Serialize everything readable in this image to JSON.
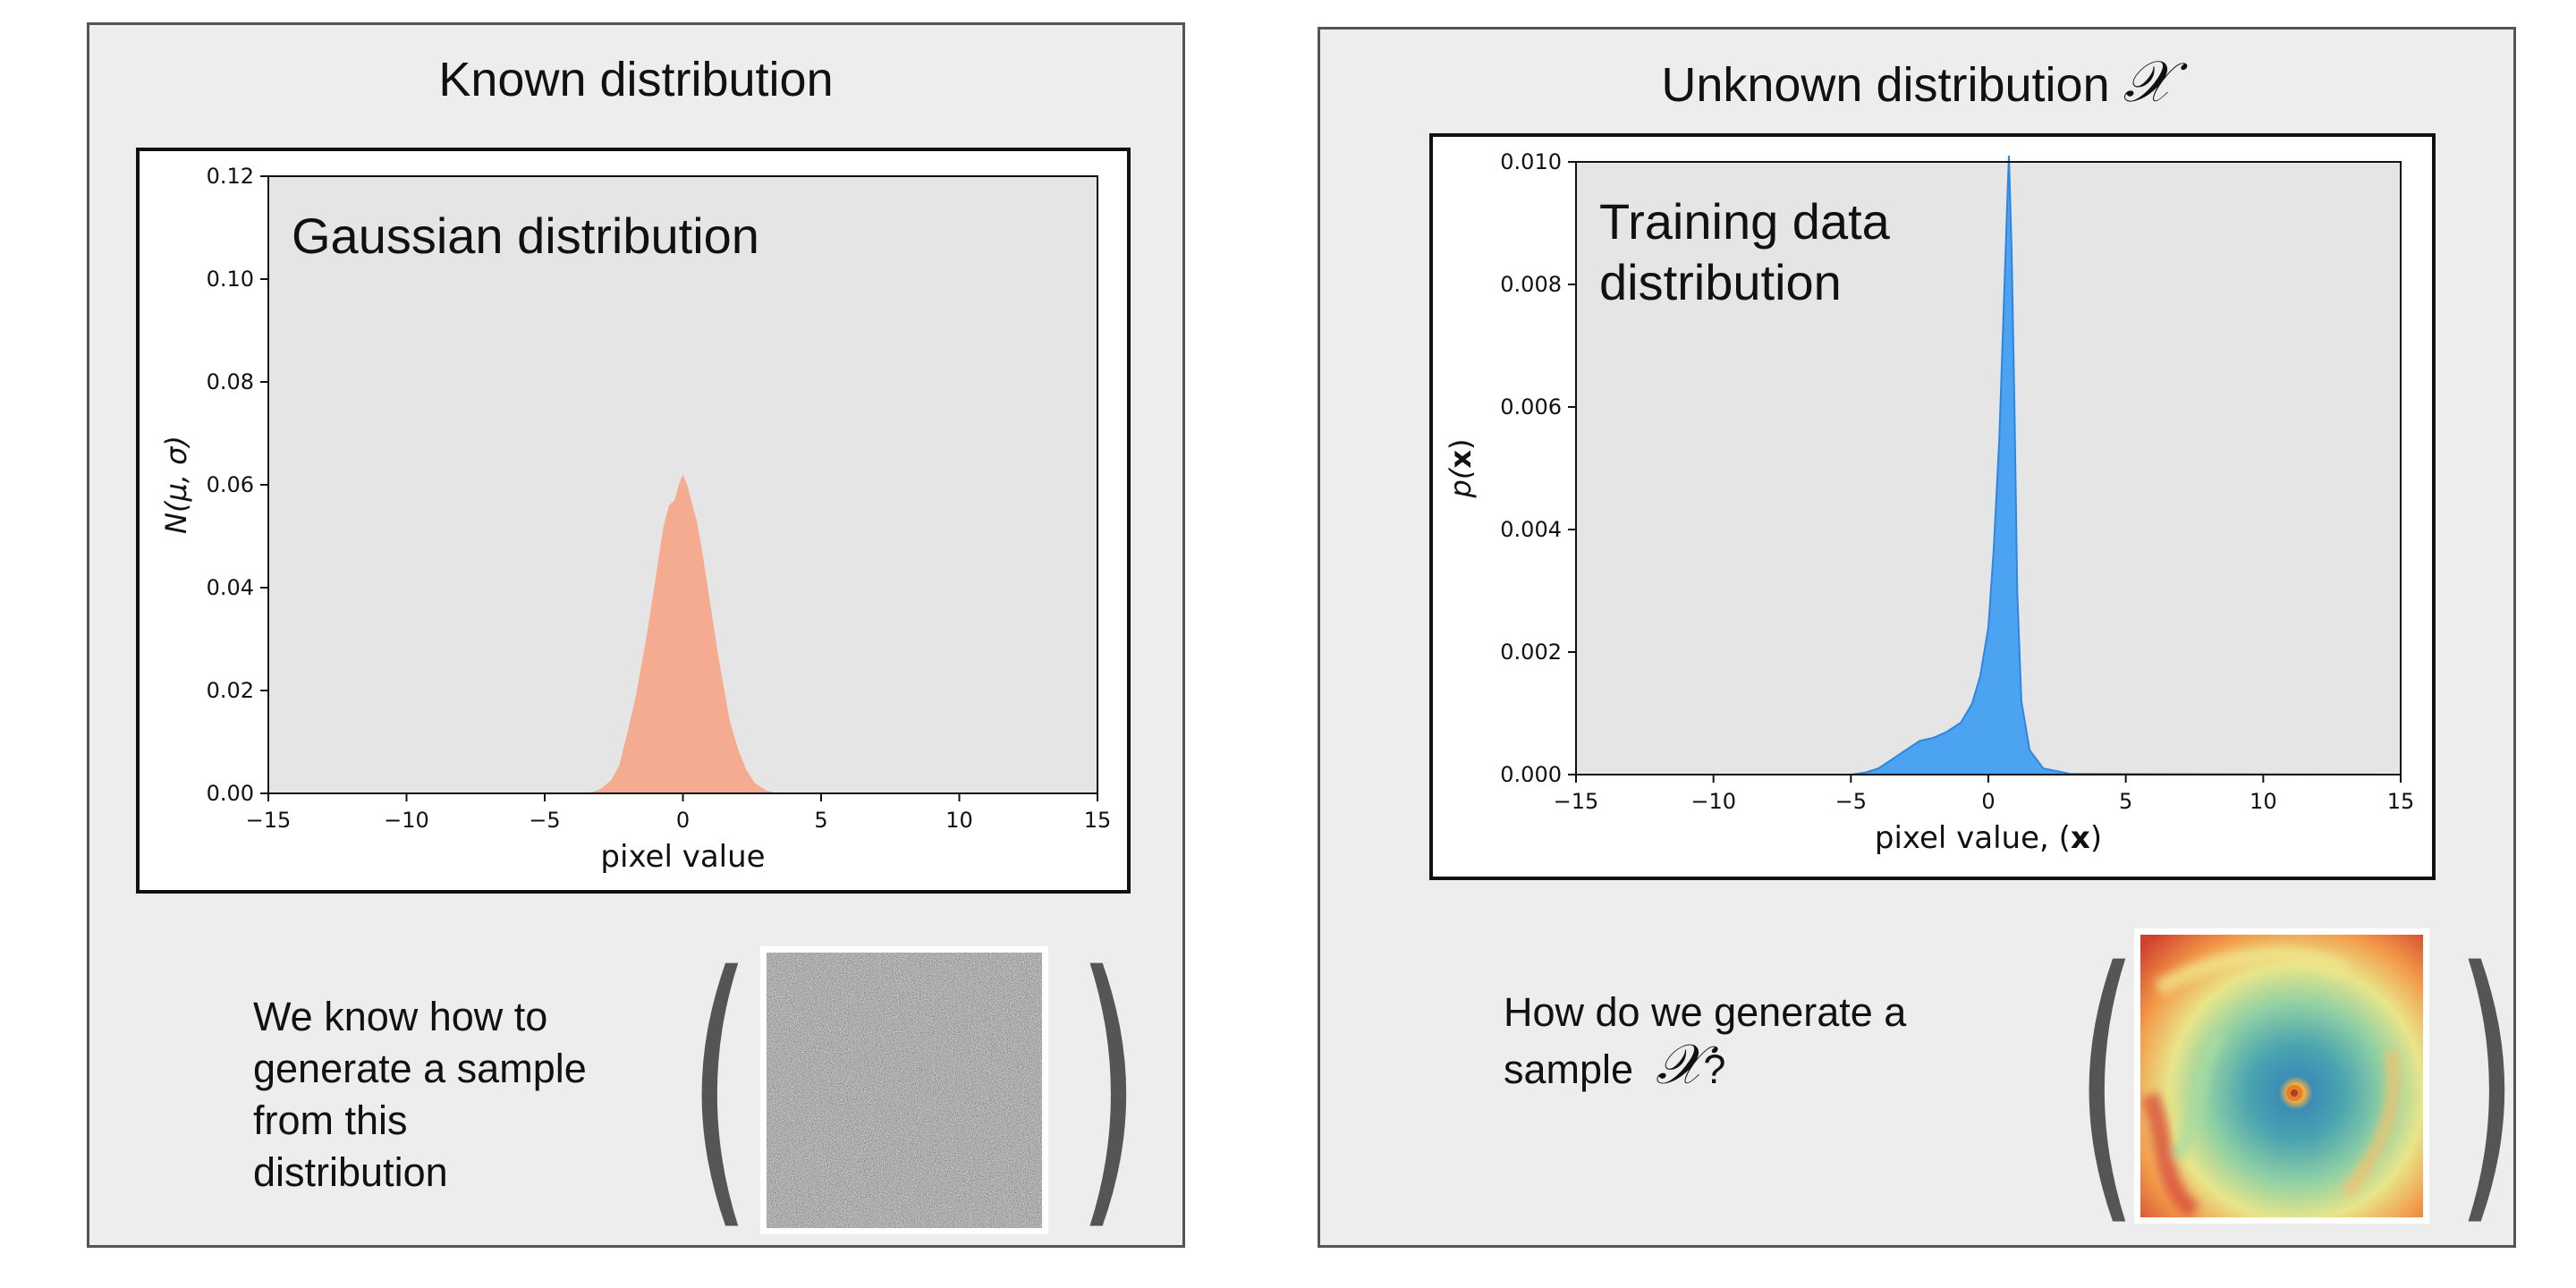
{
  "panels": {
    "left": {
      "title": "Known distribution",
      "caption_lines": [
        "We know how to",
        "generate a sample",
        "from this",
        "distribution"
      ]
    },
    "right": {
      "title": "Unknown distribution",
      "title_symbol": "𝒳",
      "caption_lines": [
        "How do we generate a",
        "sample"
      ],
      "caption_symbol": "𝒳",
      "caption_suffix": "?"
    }
  },
  "colors": {
    "panel_bg": "#ededed",
    "axes_bg": "#e5e5e5",
    "gaussian_fill": "#f4ab90",
    "training_fill": "#4ba3f2",
    "paren": "#555555"
  },
  "chart_data": [
    {
      "type": "area",
      "annotation": "Gaussian distribution",
      "xlabel": "pixel value",
      "ylabel": "N(μ, σ)",
      "xlim": [
        -15,
        15
      ],
      "ylim": [
        0,
        0.12
      ],
      "xticks": [
        -15,
        -10,
        -5,
        0,
        5,
        10,
        15
      ],
      "xtick_labels": [
        "−15",
        "−10",
        "−5",
        "0",
        "5",
        "10",
        "15"
      ],
      "yticks": [
        0.0,
        0.02,
        0.04,
        0.06,
        0.08,
        0.1,
        0.12
      ],
      "ytick_labels": [
        "0.00",
        "0.02",
        "0.04",
        "0.06",
        "0.08",
        "0.10",
        "0.12"
      ],
      "grid": false,
      "series": [
        {
          "x": [
            -3.4,
            -3.0,
            -2.6,
            -2.3,
            -2.0,
            -1.7,
            -1.5,
            -1.3,
            -1.1,
            -0.9,
            -0.7,
            -0.5,
            -0.3,
            -0.15,
            0.0,
            0.15,
            0.3,
            0.5,
            0.7,
            0.9,
            1.1,
            1.3,
            1.5,
            1.7,
            2.0,
            2.3,
            2.6,
            3.0,
            3.4
          ],
          "y": [
            0.0,
            0.0008,
            0.0025,
            0.0055,
            0.012,
            0.019,
            0.025,
            0.031,
            0.038,
            0.045,
            0.052,
            0.056,
            0.057,
            0.06,
            0.062,
            0.06,
            0.057,
            0.053,
            0.047,
            0.04,
            0.033,
            0.026,
            0.02,
            0.014,
            0.0085,
            0.0045,
            0.002,
            0.0006,
            0.0
          ]
        }
      ]
    },
    {
      "type": "area",
      "annotation": "Training data distribution",
      "xlabel": "pixel value, (x)",
      "ylabel": "p(x)",
      "xlim": [
        -15,
        15
      ],
      "ylim": [
        0,
        0.01
      ],
      "xticks": [
        -15,
        -10,
        -5,
        0,
        5,
        10,
        15
      ],
      "xtick_labels": [
        "−15",
        "−10",
        "−5",
        "0",
        "5",
        "10",
        "15"
      ],
      "yticks": [
        0.0,
        0.002,
        0.004,
        0.006,
        0.008,
        0.01
      ],
      "ytick_labels": [
        "0.000",
        "0.002",
        "0.004",
        "0.006",
        "0.008",
        "0.010"
      ],
      "grid": false,
      "series": [
        {
          "x": [
            -15,
            -5.0,
            -4.5,
            -4.0,
            -3.5,
            -3.0,
            -2.5,
            -2.0,
            -1.5,
            -1.0,
            -0.6,
            -0.3,
            0.0,
            0.2,
            0.4,
            0.55,
            0.7,
            0.75,
            0.85,
            0.95,
            1.05,
            1.2,
            1.5,
            2.0,
            3.0,
            15
          ],
          "y": [
            0.0,
            0.0,
            3e-05,
            0.0001,
            0.00025,
            0.0004,
            0.00055,
            0.0006,
            0.0007,
            0.00085,
            0.00115,
            0.0016,
            0.0024,
            0.0037,
            0.0055,
            0.0075,
            0.0095,
            0.0101,
            0.0085,
            0.006,
            0.003,
            0.0012,
            0.0004,
            0.0001,
            1e-05,
            0.0
          ]
        }
      ]
    }
  ]
}
